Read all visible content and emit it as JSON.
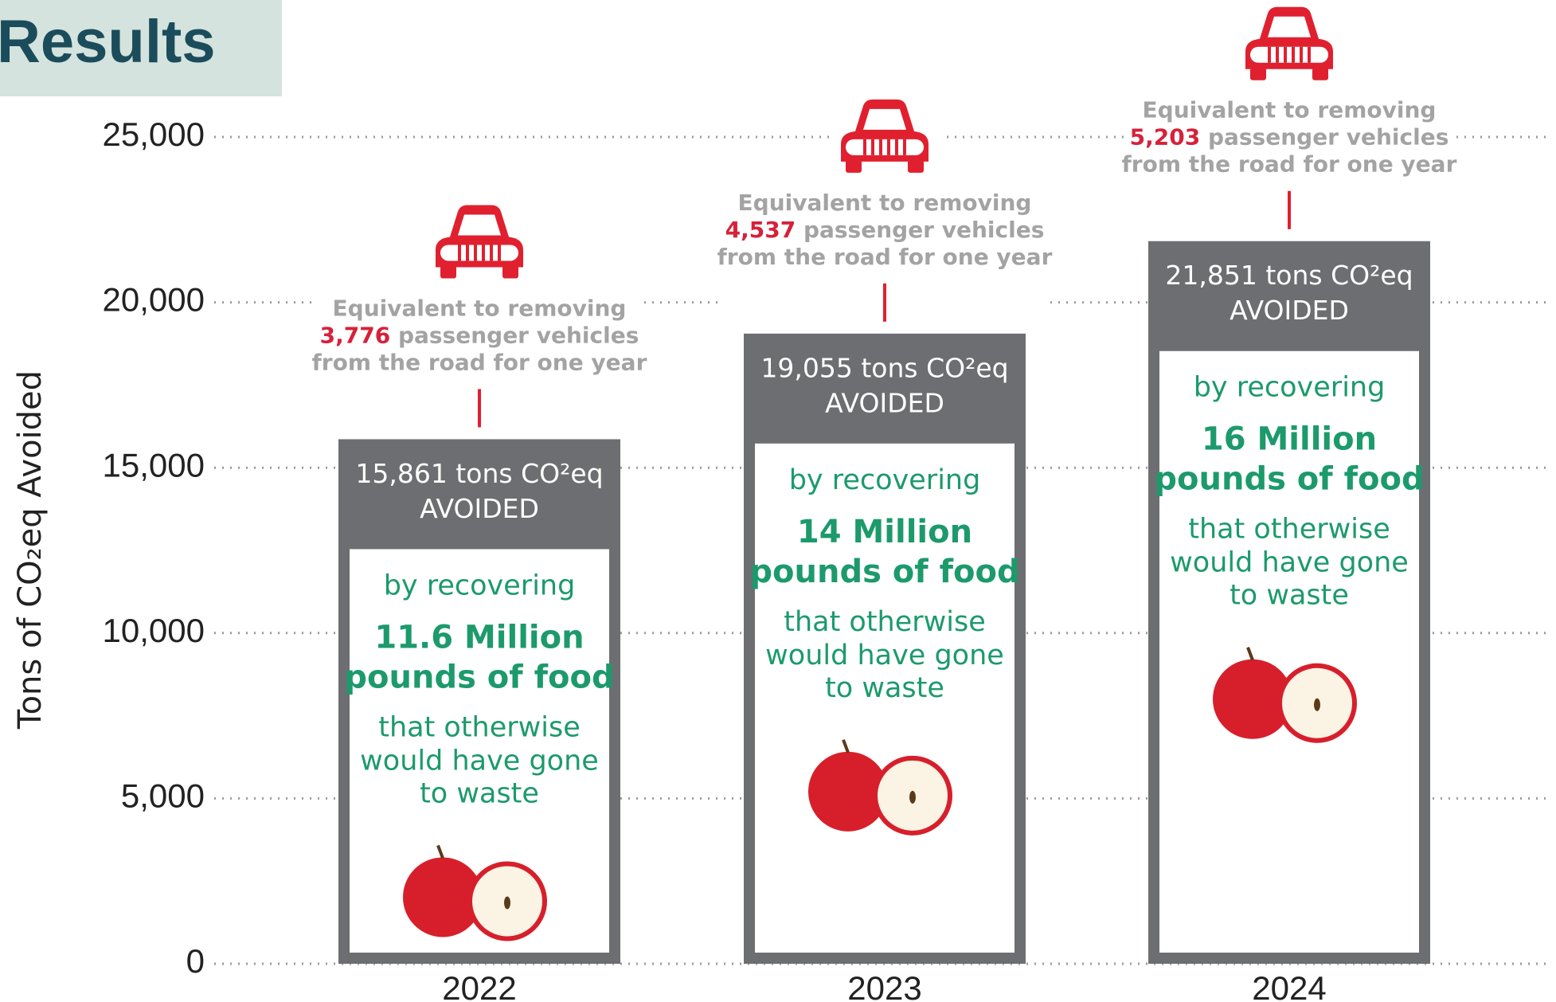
{
  "chart_data": {
    "type": "bar",
    "title": "Results",
    "ylabel": "Tons of CO₂eq Avoided",
    "categories": [
      "2022",
      "2023",
      "2024"
    ],
    "values": [
      15861,
      19055,
      21851
    ],
    "value_labels": [
      "15,861 tons CO²eq",
      "19,055 tons CO²eq",
      "21,851 tons CO²eq"
    ],
    "ylim": [
      0,
      25000
    ],
    "yticks": [
      0,
      {
        "value": 5000,
        "label": "5,000"
      },
      {
        "value": 10000,
        "label": "10,000"
      },
      {
        "value": 15000,
        "label": "15,000"
      },
      {
        "value": 20000,
        "label": "20,000"
      },
      {
        "value": 25000,
        "label": "25,000"
      }
    ],
    "grid": true,
    "color": "#6d6e71",
    "annotations": [
      {
        "equivalent": "Equivalent to removing",
        "vehicles": "3,776",
        "vehicles_text": "passenger vehicles",
        "road": "from the road for one year",
        "avoided": "AVOIDED",
        "recovering": "by recovering",
        "amount": "11.6 Million",
        "food": "pounds of food",
        "rest1": "that otherwise",
        "rest2": "would have gone",
        "rest3": "to waste"
      },
      {
        "equivalent": "Equivalent to removing",
        "vehicles": "4,537",
        "vehicles_text": "passenger vehicles",
        "road": "from the road for one year",
        "avoided": "AVOIDED",
        "recovering": "by recovering",
        "amount": "14 Million",
        "food": "pounds of food",
        "rest1": "that otherwise",
        "rest2": "would have gone",
        "rest3": "to waste"
      },
      {
        "equivalent": "Equivalent to removing",
        "vehicles": "5,203",
        "vehicles_text": "passenger vehicles",
        "road": "from the road for one year",
        "avoided": "AVOIDED",
        "recovering": "by recovering",
        "amount": "16 Million",
        "food": "pounds of food",
        "rest1": "that otherwise",
        "rest2": "would have gone",
        "rest3": "to waste"
      }
    ]
  }
}
